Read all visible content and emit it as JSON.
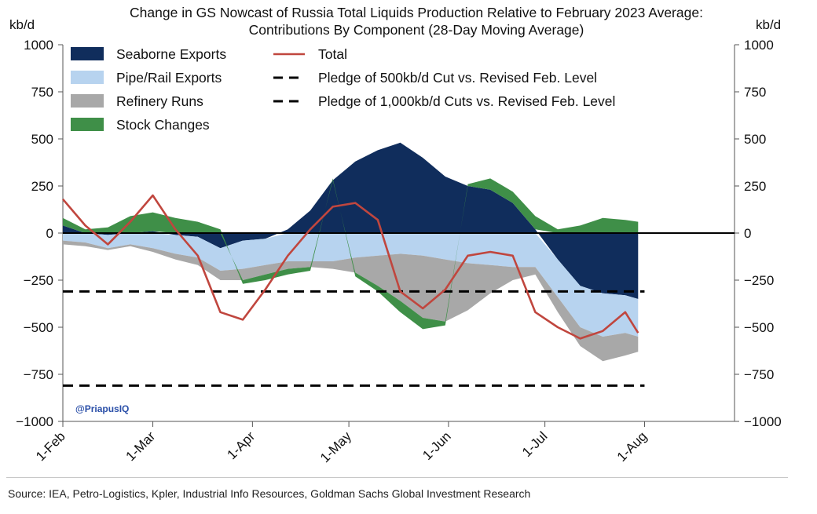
{
  "chart_data": {
    "type": "area",
    "title_line1": "Change in GS Nowcast of Russia Total Liquids Production Relative to February 2023 Average:",
    "title_line2": "Contributions By Component (28-Day Moving Average)",
    "ylabel_left": "kb/d",
    "ylabel_right": "kb/d",
    "ylim": [
      -1000,
      1000
    ],
    "yticks": [
      1000,
      750,
      500,
      250,
      0,
      -250,
      -500,
      -750,
      -1000
    ],
    "ytick_labels": [
      "1000",
      "750",
      "500",
      "250",
      "0",
      "−250",
      "−500",
      "−750",
      "−1000"
    ],
    "xlim_days": [
      0,
      209
    ],
    "xticks": [
      {
        "label": "1-Feb",
        "day": 0
      },
      {
        "label": "1-Mar",
        "day": 28
      },
      {
        "label": "1-Apr",
        "day": 59
      },
      {
        "label": "1-May",
        "day": 89
      },
      {
        "label": "1-Jun",
        "day": 120
      },
      {
        "label": "1-Jul",
        "day": 150
      },
      {
        "label": "1-Aug",
        "day": 181
      }
    ],
    "days": [
      0,
      7,
      14,
      21,
      28,
      35,
      42,
      49,
      56,
      63,
      70,
      77,
      84,
      91,
      98,
      105,
      112,
      119,
      126,
      133,
      140,
      147,
      154,
      161,
      168,
      175,
      179
    ],
    "series": [
      {
        "name": "Seaborne Exports",
        "color": "#102d5c",
        "values": [
          40,
          0,
          -10,
          0,
          10,
          -10,
          -20,
          -80,
          -40,
          -30,
          20,
          120,
          280,
          380,
          440,
          480,
          400,
          300,
          250,
          230,
          160,
          20,
          -140,
          -280,
          -320,
          -330,
          -350
        ]
      },
      {
        "name": "Pipe/Rail Exports",
        "color": "#b7d3ef",
        "values": [
          -40,
          -50,
          -70,
          -60,
          -80,
          -100,
          -110,
          -120,
          -150,
          -140,
          -150,
          -150,
          -150,
          -130,
          -120,
          -110,
          -120,
          -140,
          -160,
          -170,
          -180,
          -180,
          -200,
          -220,
          -230,
          -200,
          -200
        ]
      },
      {
        "name": "Refinery Runs",
        "color": "#a8a8a8",
        "values": [
          -20,
          -20,
          -10,
          -10,
          -20,
          -30,
          -40,
          -50,
          -60,
          -50,
          -40,
          -30,
          -40,
          -80,
          -160,
          -250,
          -330,
          -330,
          -250,
          -150,
          -70,
          -40,
          -80,
          -100,
          -130,
          -120,
          -80
        ]
      },
      {
        "name": "Stock Changes",
        "color": "#3f8f48",
        "values": [
          40,
          20,
          30,
          90,
          100,
          80,
          60,
          20,
          -20,
          -30,
          -30,
          -20,
          10,
          -20,
          -30,
          -60,
          -60,
          -20,
          10,
          60,
          60,
          70,
          20,
          40,
          80,
          70,
          60
        ]
      },
      {
        "name": "Total",
        "color": "#c0463e",
        "values": [
          180,
          40,
          -60,
          60,
          200,
          20,
          -120,
          -420,
          -460,
          -300,
          -120,
          20,
          140,
          160,
          70,
          -310,
          -400,
          -300,
          -120,
          -100,
          -120,
          -420,
          -500,
          -560,
          -520,
          -420,
          -530
        ]
      }
    ],
    "reference_lines": [
      {
        "name": "Pledge of 500kb/d Cut vs. Revised Feb. Level",
        "value": -310,
        "x_end_day": 181
      },
      {
        "name": "Pledge of 1,000kb/d Cuts vs. Revised Feb. Level",
        "value": -810,
        "x_end_day": 181
      }
    ],
    "legend_position": "top-left"
  },
  "watermark": "@PriapusIQ",
  "source": "Source: IEA, Petro-Logistics, Kpler, Industrial Info Resources, Goldman Sachs Global Investment Research"
}
